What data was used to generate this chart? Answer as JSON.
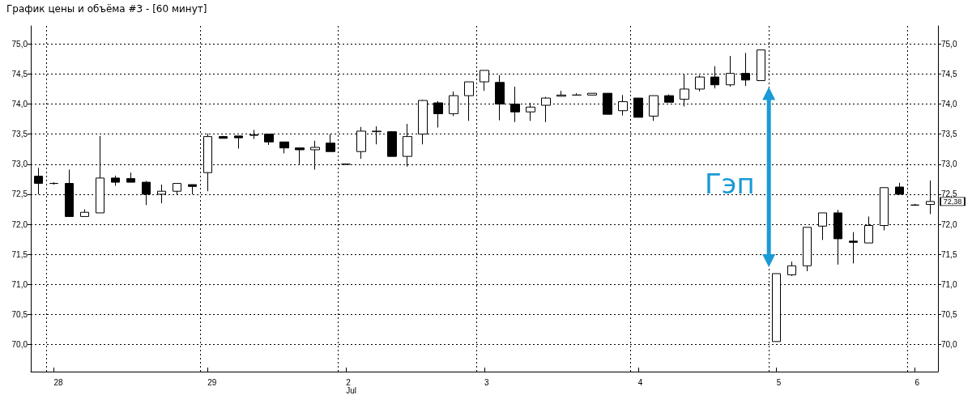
{
  "chart_data": {
    "type": "candlestick",
    "title": "График цены и объёма #3 - [60 минут]",
    "categories": [
      null,
      "28",
      null,
      null,
      null,
      null,
      null,
      null,
      null,
      null,
      null,
      "29",
      null,
      null,
      null,
      null,
      null,
      null,
      null,
      null,
      "2\nJul",
      null,
      null,
      null,
      null,
      null,
      null,
      null,
      null,
      "3",
      null,
      null,
      null,
      null,
      null,
      null,
      null,
      null,
      null,
      "4",
      null,
      null,
      null,
      null,
      null,
      null,
      null,
      null,
      "5",
      null,
      null,
      null,
      null,
      null,
      null,
      null,
      null,
      "6",
      null
    ],
    "ohlc": [
      [
        72.8,
        72.94,
        72.5,
        72.68
      ],
      [
        72.68,
        72.7,
        72.66,
        72.68
      ],
      [
        72.68,
        72.91,
        72.13,
        72.13
      ],
      [
        72.13,
        72.25,
        72.13,
        72.2
      ],
      [
        72.19,
        73.47,
        72.19,
        72.77
      ],
      [
        72.77,
        72.81,
        72.64,
        72.7
      ],
      [
        72.76,
        72.86,
        72.7,
        72.7
      ],
      [
        72.7,
        72.72,
        72.32,
        72.5
      ],
      [
        72.5,
        72.66,
        72.35,
        72.55
      ],
      [
        72.55,
        72.68,
        72.5,
        72.68
      ],
      [
        72.66,
        72.66,
        72.5,
        72.63
      ],
      [
        72.86,
        73.51,
        72.55,
        73.46
      ],
      [
        73.46,
        73.47,
        73.43,
        73.43
      ],
      [
        73.47,
        73.47,
        73.26,
        73.44
      ],
      [
        73.48,
        73.57,
        73.42,
        73.49
      ],
      [
        73.5,
        73.5,
        73.32,
        73.37
      ],
      [
        73.37,
        73.37,
        73.18,
        73.27
      ],
      [
        73.27,
        73.27,
        73.0,
        73.24
      ],
      [
        73.24,
        73.39,
        72.91,
        73.28
      ],
      [
        73.35,
        73.5,
        73.21,
        73.21
      ],
      [
        73.0,
        73.01,
        72.99,
        73.0
      ],
      [
        73.21,
        73.62,
        73.09,
        73.55
      ],
      [
        73.54,
        73.63,
        73.33,
        73.55
      ],
      [
        73.54,
        73.55,
        73.13,
        73.13
      ],
      [
        73.13,
        73.67,
        72.96,
        73.46
      ],
      [
        73.5,
        74.07,
        73.33,
        74.06
      ],
      [
        74.02,
        74.05,
        73.61,
        73.84
      ],
      [
        73.84,
        74.21,
        73.8,
        74.14
      ],
      [
        74.14,
        74.37,
        73.72,
        74.37
      ],
      [
        74.37,
        74.56,
        74.22,
        74.56
      ],
      [
        74.36,
        74.48,
        73.73,
        74.0
      ],
      [
        74.0,
        74.29,
        73.7,
        73.87
      ],
      [
        73.87,
        74.02,
        73.72,
        73.95
      ],
      [
        73.98,
        74.12,
        73.7,
        74.1
      ],
      [
        74.13,
        74.22,
        74.13,
        74.15
      ],
      [
        74.15,
        74.18,
        74.15,
        74.15
      ],
      [
        74.15,
        74.18,
        74.15,
        74.18
      ],
      [
        74.18,
        74.18,
        73.83,
        73.83
      ],
      [
        73.89,
        74.15,
        73.81,
        74.04
      ],
      [
        74.1,
        74.1,
        73.78,
        73.78
      ],
      [
        73.8,
        74.14,
        73.72,
        74.14
      ],
      [
        74.14,
        74.16,
        74.03,
        74.03
      ],
      [
        74.08,
        74.49,
        73.96,
        74.25
      ],
      [
        74.25,
        74.48,
        74.21,
        74.45
      ],
      [
        74.45,
        74.63,
        74.26,
        74.32
      ],
      [
        74.32,
        74.8,
        74.29,
        74.51
      ],
      [
        74.51,
        74.85,
        74.3,
        74.4
      ],
      [
        74.39,
        74.9,
        74.39,
        74.9
      ],
      [
        70.05,
        71.18,
        70.05,
        71.18
      ],
      [
        71.16,
        71.38,
        71.14,
        71.31
      ],
      [
        71.31,
        71.95,
        71.22,
        71.95
      ],
      [
        71.97,
        72.19,
        71.74,
        72.19
      ],
      [
        72.19,
        72.24,
        71.33,
        71.76
      ],
      [
        71.72,
        71.87,
        71.35,
        71.7
      ],
      [
        71.69,
        72.13,
        71.69,
        71.98
      ],
      [
        71.98,
        72.61,
        71.9,
        72.61
      ],
      [
        72.62,
        72.69,
        72.5,
        72.5
      ],
      [
        72.32,
        72.34,
        72.31,
        72.32
      ],
      [
        72.33,
        72.73,
        72.17,
        72.38
      ]
    ],
    "ylim": [
      69.55,
      75.3
    ],
    "yticks": [
      {
        "value": 70,
        "label": "70,0"
      },
      {
        "value": 70.5,
        "label": "70,5"
      },
      {
        "value": 71,
        "label": "71,0"
      },
      {
        "value": 71.5,
        "label": "71,5"
      },
      {
        "value": 72,
        "label": "72,0"
      },
      {
        "value": 72.5,
        "label": "72,5"
      },
      {
        "value": 73,
        "label": "73,0"
      },
      {
        "value": 73.5,
        "label": "73,5"
      },
      {
        "value": 74,
        "label": "74,0"
      },
      {
        "value": 74.5,
        "label": "74,5"
      },
      {
        "value": 75,
        "label": "75,0"
      }
    ],
    "y2lim": [
      69.55,
      75.3
    ],
    "y2ticks": [
      {
        "value": 70,
        "label": "70,0"
      },
      {
        "value": 70.5,
        "label": "70,5"
      },
      {
        "value": 71,
        "label": "71,0"
      },
      {
        "value": 71.5,
        "label": "71,5"
      },
      {
        "value": 72,
        "label": "72,0"
      },
      {
        "value": 72.5,
        "label": "72,5"
      },
      {
        "value": 73,
        "label": "73,0"
      },
      {
        "value": 73.5,
        "label": "73,5"
      },
      {
        "value": 74,
        "label": "74,0"
      },
      {
        "value": 74.5,
        "label": "74,5"
      },
      {
        "value": 75,
        "label": "75,0"
      }
    ],
    "annotations": [
      "Гэп",
      {
        "text": "72,38",
        "y": 72.38
      }
    ],
    "grid": true
  }
}
